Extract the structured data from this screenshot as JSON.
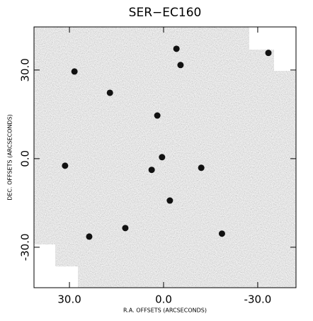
{
  "chart_data": {
    "type": "image",
    "title": "SER−EC160",
    "xlabel": "R.A. OFFSETS (ARCSECONDS)",
    "ylabel": "DEC. OFFSETS (ARCSECONDS)",
    "xlim": [
      41.3,
      -42.2
    ],
    "ylim": [
      -43.7,
      44.6
    ],
    "xticks": [
      {
        "value": 30,
        "label": "30.0"
      },
      {
        "value": 0,
        "label": "0.0"
      },
      {
        "value": -30,
        "label": "-30.0"
      }
    ],
    "yticks": [
      {
        "value": -30,
        "label": "-30.0"
      },
      {
        "value": 0,
        "label": "0.0"
      },
      {
        "value": 30,
        "label": "30.0"
      }
    ],
    "x": [
      0.5,
      3.8,
      -4.1,
      28.4,
      -5.4,
      17.1,
      2.0,
      -12.0,
      -2.0,
      31.4,
      23.7,
      -18.6,
      -33.4,
      12.2
    ],
    "values": [
      0.5,
      -3.8,
      37.2,
      29.5,
      31.7,
      22.3,
      14.6,
      -3.1,
      -14.2,
      -2.4,
      -26.4,
      -25.4,
      35.8,
      -23.5
    ],
    "color": "#111111"
  }
}
